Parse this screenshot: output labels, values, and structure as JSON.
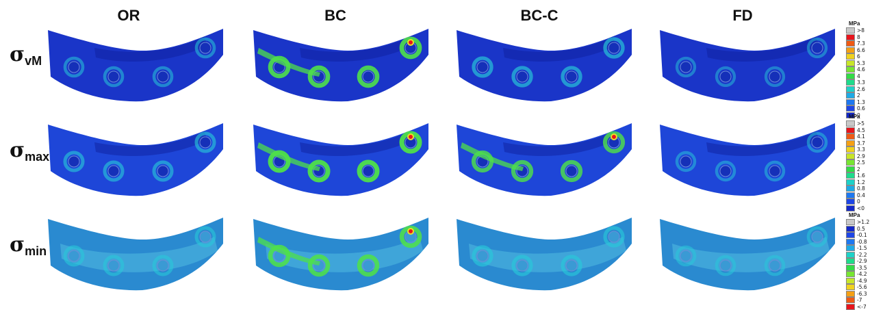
{
  "columns": [
    "OR",
    "BC",
    "BC-C",
    "FD"
  ],
  "rows": [
    {
      "symbol": "σ",
      "subscript": "vM"
    },
    {
      "symbol": "σ",
      "subscript": "max"
    },
    {
      "symbol": "σ",
      "subscript": "min"
    }
  ],
  "legends": [
    {
      "unit": "MPa",
      "items": [
        {
          "label": ">8",
          "color": "#c8c8c8"
        },
        {
          "label": "8",
          "color": "#e8141c"
        },
        {
          "label": "7.3",
          "color": "#f05a14"
        },
        {
          "label": "6.6",
          "color": "#f5a014"
        },
        {
          "label": "6",
          "color": "#f0d21e"
        },
        {
          "label": "5.3",
          "color": "#c8e628"
        },
        {
          "label": "4.6",
          "color": "#78e632"
        },
        {
          "label": "4",
          "color": "#32dc46"
        },
        {
          "label": "3.3",
          "color": "#1edc8c"
        },
        {
          "label": "2.6",
          "color": "#1ed2c8"
        },
        {
          "label": "2",
          "color": "#1eaae6"
        },
        {
          "label": "1.3",
          "color": "#1e78f0"
        },
        {
          "label": "0.6",
          "color": "#1e46e6"
        },
        {
          "label": "0",
          "color": "#1428c8"
        }
      ]
    },
    {
      "unit": "MPa",
      "items": [
        {
          "label": ">5",
          "color": "#c8c8c8"
        },
        {
          "label": "4.5",
          "color": "#e8141c"
        },
        {
          "label": "4.1",
          "color": "#f05a14"
        },
        {
          "label": "3.7",
          "color": "#f5a014"
        },
        {
          "label": "3.3",
          "color": "#f0d21e"
        },
        {
          "label": "2.9",
          "color": "#c8e628"
        },
        {
          "label": "2.5",
          "color": "#78e632"
        },
        {
          "label": "2",
          "color": "#32dc46"
        },
        {
          "label": "1.6",
          "color": "#1edc8c"
        },
        {
          "label": "1.2",
          "color": "#1ed2c8"
        },
        {
          "label": "0.8",
          "color": "#1eaae6"
        },
        {
          "label": "0.4",
          "color": "#1e78f0"
        },
        {
          "label": "0",
          "color": "#1e46e6"
        },
        {
          "label": "<0",
          "color": "#1428c8"
        }
      ]
    },
    {
      "unit": "MPa",
      "items": [
        {
          "label": ">1.2",
          "color": "#c8c8c8"
        },
        {
          "label": "0.5",
          "color": "#1428c8"
        },
        {
          "label": "-0.1",
          "color": "#1e46e6"
        },
        {
          "label": "-0.8",
          "color": "#1e78f0"
        },
        {
          "label": "-1.5",
          "color": "#1eaae6"
        },
        {
          "label": "-2.2",
          "color": "#1ed2c8"
        },
        {
          "label": "-2.9",
          "color": "#1edc8c"
        },
        {
          "label": "-3.5",
          "color": "#32dc46"
        },
        {
          "label": "-4.2",
          "color": "#78e632"
        },
        {
          "label": "-4.9",
          "color": "#c8e628"
        },
        {
          "label": "-5.6",
          "color": "#f0d21e"
        },
        {
          "label": "-6.3",
          "color": "#f5a014"
        },
        {
          "label": "-7",
          "color": "#f05a14"
        },
        {
          "label": "<-7",
          "color": "#e8141c"
        }
      ]
    }
  ],
  "colors": {
    "vm_base": "#1a35c8",
    "vm_dark": "#0d1f9e",
    "max_base": "#1e46d8",
    "min_base": "#2a8ad0",
    "min_light": "#4fb8e0",
    "hot_green": "#4fe04a",
    "hot_yellow": "#e8e028",
    "hot_red": "#e8141c",
    "cyan": "#28c8d8"
  }
}
